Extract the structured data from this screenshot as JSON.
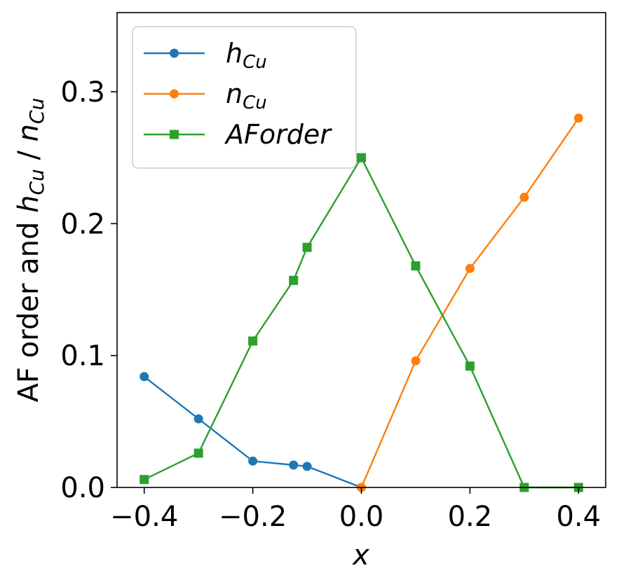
{
  "chart_data": {
    "type": "line",
    "xlabel": "x",
    "ylabel_parts": {
      "prefix": "AF order and ",
      "h_main": "h",
      "h_sub": "Cu",
      "sep": " / ",
      "n_main": "n",
      "n_sub": "Cu"
    },
    "xlim": [
      -0.45,
      0.45
    ],
    "ylim": [
      0.0,
      0.36
    ],
    "xticks": [
      -0.4,
      -0.2,
      0.0,
      0.2,
      0.4
    ],
    "xtick_labels": [
      "−0.4",
      "−0.2",
      "0.0",
      "0.2",
      "0.4"
    ],
    "yticks": [
      0.0,
      0.1,
      0.2,
      0.3
    ],
    "ytick_labels": [
      "0.0",
      "0.1",
      "0.2",
      "0.3"
    ],
    "grid": false,
    "legend_position": "top-left",
    "series": [
      {
        "label_main": "h",
        "label_sub": "Cu",
        "color": "#1f77b4",
        "marker": "circle",
        "x": [
          -0.4,
          -0.3,
          -0.2,
          -0.125,
          -0.1,
          0.0
        ],
        "y": [
          0.084,
          0.052,
          0.02,
          0.017,
          0.016,
          0.0
        ]
      },
      {
        "label_main": "n",
        "label_sub": "Cu",
        "color": "#ff7f0e",
        "marker": "circle",
        "x": [
          0.0,
          0.1,
          0.2,
          0.3,
          0.4
        ],
        "y": [
          0.0,
          0.096,
          0.166,
          0.22,
          0.28
        ]
      },
      {
        "label_main": "AForder",
        "label_sub": "",
        "color": "#2ca02c",
        "marker": "square",
        "x": [
          -0.4,
          -0.3,
          -0.2,
          -0.125,
          -0.1,
          0.0,
          0.1,
          0.2,
          0.3,
          0.4
        ],
        "y": [
          0.006,
          0.026,
          0.111,
          0.157,
          0.182,
          0.25,
          0.168,
          0.092,
          0.0,
          0.0
        ]
      }
    ]
  }
}
